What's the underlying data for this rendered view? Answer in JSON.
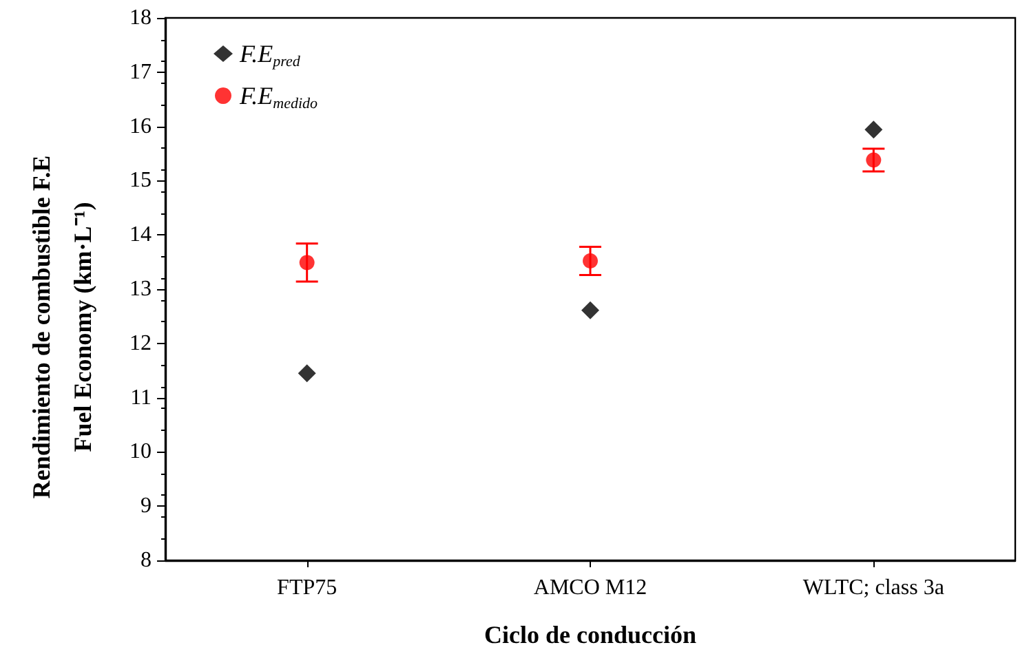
{
  "chart_data": {
    "type": "scatter",
    "xlabel": "Ciclo de conducción",
    "ylabel": "Rendimiento de combustible F.E\nFuel Economy (km·L⁻¹)",
    "categories": [
      "FTP75",
      "AMCO M12",
      "WLTC; class 3a"
    ],
    "series": [
      {
        "name": "F.E$_{pred}$",
        "color": "#000000",
        "marker": "diamond",
        "values": [
          11.45,
          12.61,
          15.94
        ]
      },
      {
        "name": "F.E$_{medido}$",
        "color": "#ff0000",
        "marker": "circle",
        "values": [
          13.49,
          13.52,
          15.38
        ],
        "errors": [
          0.35,
          0.26,
          0.21
        ]
      }
    ],
    "ylim": [
      8,
      18
    ],
    "yticks": [
      8,
      9,
      10,
      11,
      12,
      13,
      14,
      15,
      16,
      17,
      18
    ],
    "grid": false,
    "legend": "top left"
  }
}
